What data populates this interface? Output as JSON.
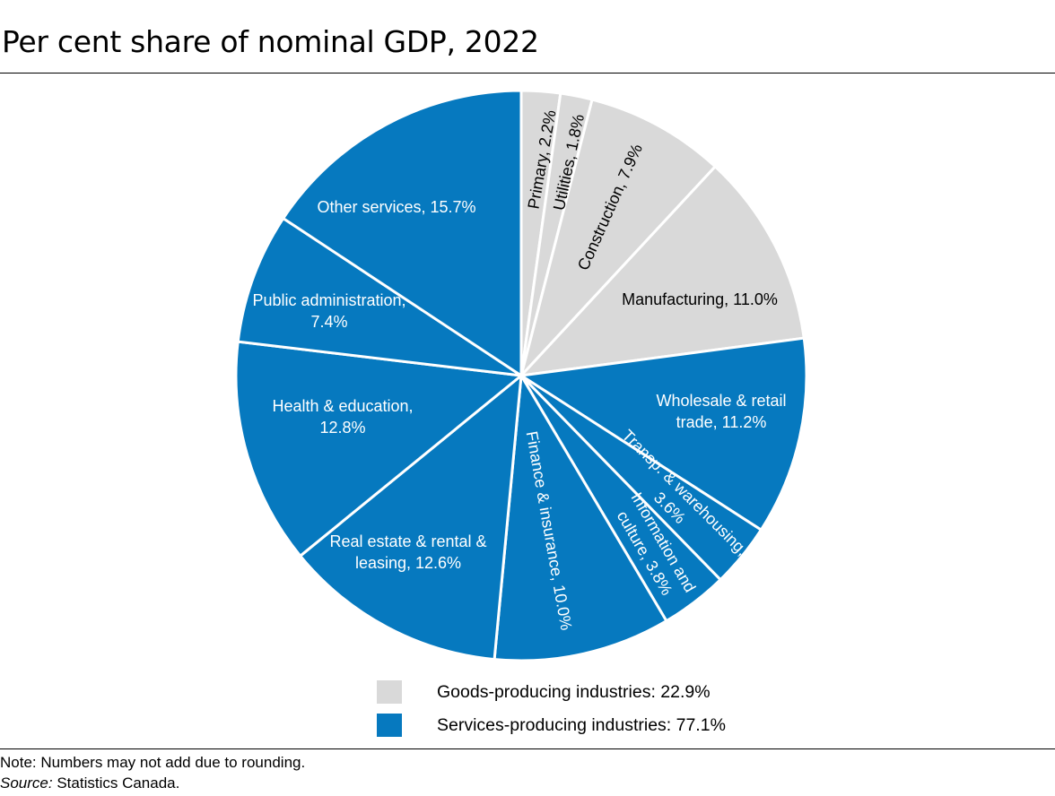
{
  "chart_data": {
    "type": "pie",
    "title": "Per cent share of nominal GDP, 2022",
    "slices": [
      {
        "label": "Primary",
        "value_text": "2.2%",
        "value": 2.2,
        "group": "goods"
      },
      {
        "label": "Utilities",
        "value_text": "1.8%",
        "value": 1.8,
        "group": "goods"
      },
      {
        "label": "Construction",
        "value_text": "7.9%",
        "value": 7.9,
        "group": "goods"
      },
      {
        "label": "Manufacturing",
        "value_text": "11.0%",
        "value": 11.0,
        "group": "goods"
      },
      {
        "label": "Wholesale & retail trade",
        "value_text": "11.2%",
        "value": 11.2,
        "group": "services"
      },
      {
        "label": "Transp. & warehousing",
        "value_text": "3.6%",
        "value": 3.6,
        "group": "services"
      },
      {
        "label": "Information and culture",
        "value_text": "3.8%",
        "value": 3.8,
        "group": "services"
      },
      {
        "label": "Finance & insurance",
        "value_text": "10.0%",
        "value": 10.0,
        "group": "services"
      },
      {
        "label": "Real estate & rental & leasing",
        "value_text": "12.6%",
        "value": 12.6,
        "group": "services"
      },
      {
        "label": "Health & education",
        "value_text": "12.8%",
        "value": 12.8,
        "group": "services"
      },
      {
        "label": "Public administration",
        "value_text": "7.4%",
        "value": 7.4,
        "group": "services"
      },
      {
        "label": "Other services",
        "value_text": "15.7%",
        "value": 15.7,
        "group": "services"
      }
    ],
    "legend": [
      {
        "key": "goods",
        "label": "Goods-producing industries: 22.9%",
        "color": "#d9d9d9"
      },
      {
        "key": "services",
        "label": "Services-producing industries: 77.1%",
        "color": "#0679bf"
      }
    ]
  },
  "notes": {
    "note": "Note: Numbers may not add due to rounding.",
    "source_label": "Source:",
    "source_text": "Statistics Canada."
  }
}
